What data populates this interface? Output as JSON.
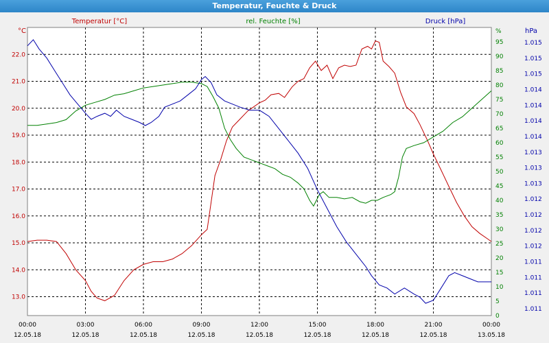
{
  "window": {
    "title": "Temperatur, Feuchte & Druck"
  },
  "series_titles": {
    "temperature": "Temperatur [°C]",
    "humidity": "rel. Feuchte [%]",
    "pressure": "Druck [hPa]"
  },
  "units": {
    "left": "°C",
    "right": "%",
    "far_right": "hPa"
  },
  "colors": {
    "temperature": "#c00000",
    "humidity": "#008000",
    "pressure": "#0000aa",
    "grid": "#000000",
    "plot_bg": "#ffffff"
  },
  "chart_data": {
    "type": "line",
    "title": "Temperatur, Feuchte & Druck",
    "grid": true,
    "x_ticks": [
      {
        "time": "00:00",
        "date": "12.05.18"
      },
      {
        "time": "03:00",
        "date": "12.05.18"
      },
      {
        "time": "06:00",
        "date": "12.05.18"
      },
      {
        "time": "09:00",
        "date": "12.05.18"
      },
      {
        "time": "12:00",
        "date": "12.05.18"
      },
      {
        "time": "15:00",
        "date": "12.05.18"
      },
      {
        "time": "18:00",
        "date": "12.05.18"
      },
      {
        "time": "21:00",
        "date": "12.05.18"
      },
      {
        "time": "00:00",
        "date": "13.05.18"
      }
    ],
    "x_range_hours": [
      0,
      24
    ],
    "axes": {
      "temperature": {
        "ylim": [
          12.3,
          23.0
        ],
        "ticks": [
          "13.0",
          "14.0",
          "15.0",
          "16.0",
          "17.0",
          "18.0",
          "19.0",
          "20.0",
          "21.0",
          "22.0"
        ]
      },
      "humidity": {
        "ylim": [
          0,
          100
        ],
        "ticks": [
          "0",
          "5",
          "10",
          "15",
          "20",
          "25",
          "30",
          "35",
          "40",
          "45",
          "50",
          "55",
          "60",
          "65",
          "70",
          "75",
          "80",
          "85",
          "90",
          "95",
          "%"
        ]
      },
      "pressure": {
        "ylim": [
          1010.6,
          1015.3
        ],
        "ticks": [
          "1.011",
          "1.011",
          "1.011",
          "1.011",
          "1.012",
          "1.012",
          "1.012",
          "1.012",
          "1.013",
          "1.013",
          "1.013",
          "1.014",
          "1.014",
          "1.014",
          "1.014",
          "1.015",
          "1.015",
          "1.015"
        ]
      }
    },
    "series": [
      {
        "name": "Temperatur [°C]",
        "axis": "temperature",
        "points": [
          [
            0.0,
            15.05
          ],
          [
            0.5,
            15.1
          ],
          [
            1.0,
            15.1
          ],
          [
            1.5,
            15.05
          ],
          [
            2.0,
            14.6
          ],
          [
            2.5,
            14.0
          ],
          [
            3.0,
            13.6
          ],
          [
            3.3,
            13.2
          ],
          [
            3.6,
            12.95
          ],
          [
            4.0,
            12.85
          ],
          [
            4.5,
            13.05
          ],
          [
            5.0,
            13.6
          ],
          [
            5.5,
            14.0
          ],
          [
            6.0,
            14.2
          ],
          [
            6.5,
            14.3
          ],
          [
            7.0,
            14.3
          ],
          [
            7.5,
            14.4
          ],
          [
            8.0,
            14.6
          ],
          [
            8.5,
            14.9
          ],
          [
            9.0,
            15.3
          ],
          [
            9.3,
            15.5
          ],
          [
            9.5,
            16.5
          ],
          [
            9.7,
            17.5
          ],
          [
            10.0,
            18.1
          ],
          [
            10.3,
            18.8
          ],
          [
            10.6,
            19.3
          ],
          [
            11.0,
            19.6
          ],
          [
            11.4,
            19.9
          ],
          [
            11.7,
            20.05
          ],
          [
            12.0,
            20.2
          ],
          [
            12.3,
            20.3
          ],
          [
            12.6,
            20.5
          ],
          [
            13.0,
            20.55
          ],
          [
            13.3,
            20.4
          ],
          [
            13.7,
            20.8
          ],
          [
            14.0,
            21.0
          ],
          [
            14.3,
            21.1
          ],
          [
            14.6,
            21.5
          ],
          [
            14.9,
            21.75
          ],
          [
            15.2,
            21.4
          ],
          [
            15.5,
            21.6
          ],
          [
            15.8,
            21.1
          ],
          [
            16.1,
            21.5
          ],
          [
            16.4,
            21.6
          ],
          [
            16.7,
            21.55
          ],
          [
            17.0,
            21.6
          ],
          [
            17.3,
            22.2
          ],
          [
            17.6,
            22.3
          ],
          [
            17.8,
            22.2
          ],
          [
            18.0,
            22.5
          ],
          [
            18.2,
            22.45
          ],
          [
            18.4,
            21.75
          ],
          [
            18.7,
            21.55
          ],
          [
            19.0,
            21.3
          ],
          [
            19.3,
            20.6
          ],
          [
            19.6,
            20.05
          ],
          [
            20.0,
            19.8
          ],
          [
            20.3,
            19.4
          ],
          [
            20.7,
            18.8
          ],
          [
            21.0,
            18.3
          ],
          [
            21.4,
            17.7
          ],
          [
            21.8,
            17.1
          ],
          [
            22.2,
            16.5
          ],
          [
            22.6,
            16.0
          ],
          [
            23.0,
            15.6
          ],
          [
            23.4,
            15.35
          ],
          [
            23.8,
            15.15
          ],
          [
            24.0,
            15.05
          ]
        ]
      },
      {
        "name": "rel. Feuchte [%]",
        "axis": "humidity",
        "points": [
          [
            0.0,
            66
          ],
          [
            0.5,
            66
          ],
          [
            1.0,
            66.5
          ],
          [
            1.5,
            67
          ],
          [
            2.0,
            68
          ],
          [
            2.5,
            71
          ],
          [
            3.0,
            73
          ],
          [
            3.5,
            74
          ],
          [
            4.0,
            75
          ],
          [
            4.5,
            76.5
          ],
          [
            5.0,
            77
          ],
          [
            5.5,
            78
          ],
          [
            6.0,
            79
          ],
          [
            6.5,
            79.5
          ],
          [
            7.0,
            80
          ],
          [
            7.5,
            80.5
          ],
          [
            8.0,
            81
          ],
          [
            8.5,
            81
          ],
          [
            9.0,
            80.5
          ],
          [
            9.3,
            79.5
          ],
          [
            9.6,
            76
          ],
          [
            9.9,
            72
          ],
          [
            10.2,
            65
          ],
          [
            10.5,
            61
          ],
          [
            10.8,
            58
          ],
          [
            11.2,
            55
          ],
          [
            11.6,
            54
          ],
          [
            12.0,
            53
          ],
          [
            12.4,
            52
          ],
          [
            12.8,
            51
          ],
          [
            13.2,
            49
          ],
          [
            13.6,
            48
          ],
          [
            14.0,
            46
          ],
          [
            14.3,
            44
          ],
          [
            14.6,
            40
          ],
          [
            14.8,
            38
          ],
          [
            15.1,
            42
          ],
          [
            15.3,
            43
          ],
          [
            15.6,
            41
          ],
          [
            16.0,
            41
          ],
          [
            16.4,
            40.5
          ],
          [
            16.8,
            41
          ],
          [
            17.2,
            39.5
          ],
          [
            17.5,
            39
          ],
          [
            17.8,
            40
          ],
          [
            18.1,
            40
          ],
          [
            18.4,
            41
          ],
          [
            18.8,
            42
          ],
          [
            19.0,
            43
          ],
          [
            19.2,
            48
          ],
          [
            19.4,
            55
          ],
          [
            19.6,
            58
          ],
          [
            20.0,
            59
          ],
          [
            20.5,
            60
          ],
          [
            21.0,
            62
          ],
          [
            21.5,
            64
          ],
          [
            22.0,
            67
          ],
          [
            22.5,
            69
          ],
          [
            23.0,
            72
          ],
          [
            23.5,
            75
          ],
          [
            24.0,
            78
          ]
        ]
      },
      {
        "name": "Druck [hPa]",
        "axis": "pressure",
        "points": [
          [
            0.0,
            1015.0
          ],
          [
            0.3,
            1015.1
          ],
          [
            0.6,
            1014.95
          ],
          [
            1.0,
            1014.8
          ],
          [
            1.4,
            1014.6
          ],
          [
            1.8,
            1014.4
          ],
          [
            2.2,
            1014.2
          ],
          [
            2.6,
            1014.05
          ],
          [
            3.0,
            1013.9
          ],
          [
            3.3,
            1013.8
          ],
          [
            3.6,
            1013.85
          ],
          [
            4.0,
            1013.9
          ],
          [
            4.3,
            1013.85
          ],
          [
            4.6,
            1013.95
          ],
          [
            5.0,
            1013.85
          ],
          [
            5.4,
            1013.8
          ],
          [
            5.8,
            1013.75
          ],
          [
            6.1,
            1013.7
          ],
          [
            6.4,
            1013.75
          ],
          [
            6.8,
            1013.85
          ],
          [
            7.1,
            1014.0
          ],
          [
            7.5,
            1014.05
          ],
          [
            7.9,
            1014.1
          ],
          [
            8.3,
            1014.2
          ],
          [
            8.7,
            1014.3
          ],
          [
            9.0,
            1014.45
          ],
          [
            9.2,
            1014.5
          ],
          [
            9.5,
            1014.4
          ],
          [
            9.8,
            1014.2
          ],
          [
            10.2,
            1014.1
          ],
          [
            10.6,
            1014.05
          ],
          [
            11.0,
            1014.0
          ],
          [
            11.5,
            1013.95
          ],
          [
            12.0,
            1013.95
          ],
          [
            12.5,
            1013.85
          ],
          [
            13.0,
            1013.65
          ],
          [
            13.5,
            1013.45
          ],
          [
            14.0,
            1013.25
          ],
          [
            14.5,
            1013.0
          ],
          [
            15.0,
            1012.65
          ],
          [
            15.5,
            1012.35
          ],
          [
            16.0,
            1012.05
          ],
          [
            16.5,
            1011.8
          ],
          [
            17.0,
            1011.6
          ],
          [
            17.5,
            1011.4
          ],
          [
            17.8,
            1011.25
          ],
          [
            18.2,
            1011.1
          ],
          [
            18.6,
            1011.05
          ],
          [
            19.0,
            1010.95
          ],
          [
            19.5,
            1011.05
          ],
          [
            20.0,
            1010.95
          ],
          [
            20.3,
            1010.9
          ],
          [
            20.6,
            1010.8
          ],
          [
            21.0,
            1010.85
          ],
          [
            21.4,
            1011.05
          ],
          [
            21.8,
            1011.25
          ],
          [
            22.1,
            1011.3
          ],
          [
            22.5,
            1011.25
          ],
          [
            22.9,
            1011.2
          ],
          [
            23.3,
            1011.15
          ],
          [
            23.7,
            1011.15
          ],
          [
            24.0,
            1011.15
          ]
        ]
      }
    ]
  }
}
